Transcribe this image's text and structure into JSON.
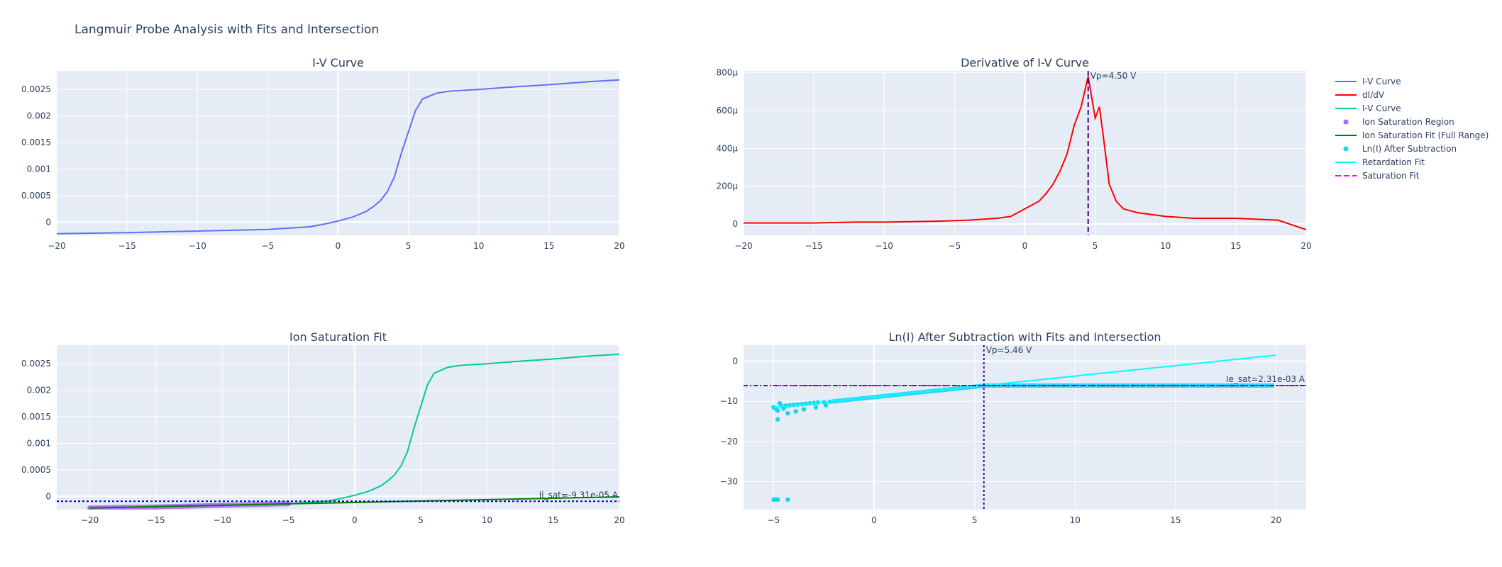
{
  "figure_title": "Langmuir Probe Analysis with Fits and Intersection",
  "colors": {
    "plot_bg": "#E5ECF6",
    "grid": "#FFFFFF",
    "text": "#2a3f5f",
    "iv_curve": "#636EFA",
    "didv": "#FF0000",
    "iv_curve_2": "#00CC96",
    "ion_region": "#AB63FA",
    "ion_fit": "#008000",
    "ln_points": "#19D3F3",
    "retard_fit": "#00FFFF",
    "sat_fit": "#FF00FF",
    "vp_line": "#4B0082",
    "isat_line": "#0000CD",
    "esat_line": "#8B008B"
  },
  "legend": [
    {
      "label": "I-V Curve",
      "kind": "line",
      "color": "#636EFA"
    },
    {
      "label": "dI/dV",
      "kind": "line",
      "color": "#FF0000"
    },
    {
      "label": "I-V Curve",
      "kind": "line",
      "color": "#00CC96"
    },
    {
      "label": "Ion Saturation Region",
      "kind": "marker",
      "color": "#AB63FA"
    },
    {
      "label": "Ion Saturation Fit (Full Range)",
      "kind": "line",
      "color": "#008000"
    },
    {
      "label": "Ln(I) After Subtraction",
      "kind": "marker",
      "color": "#19D3F3"
    },
    {
      "label": "Retardation Fit",
      "kind": "line",
      "color": "#00FFFF"
    },
    {
      "label": "Saturation Fit",
      "kind": "dash",
      "color": "#FF00FF"
    }
  ],
  "chart_data": [
    {
      "type": "line",
      "title": "I-V Curve",
      "xlim": [
        -20,
        20
      ],
      "ylim": [
        -0.00025,
        0.00285
      ],
      "xticks": [
        -20,
        -15,
        -10,
        -5,
        0,
        5,
        10,
        15,
        20
      ],
      "xtick_labels": [
        "−20",
        "−15",
        "−10",
        "−5",
        "0",
        "5",
        "10",
        "15",
        "20"
      ],
      "yticks": [
        0,
        0.0005,
        0.001,
        0.0015,
        0.002,
        0.0025
      ],
      "ytick_labels": [
        "0",
        "0.0005",
        "0.001",
        "0.0015",
        "0.002",
        "0.0025"
      ],
      "series": [
        {
          "name": "I-V Curve",
          "color": "#636EFA",
          "x": [
            -20,
            -15,
            -10,
            -5,
            -2,
            -1,
            0,
            1,
            2,
            2.5,
            3,
            3.5,
            4,
            4.5,
            5,
            5.5,
            6,
            7,
            8,
            10,
            12,
            15,
            18,
            20
          ],
          "y": [
            -0.00022,
            -0.0002,
            -0.00017,
            -0.00014,
            -9e-05,
            -4e-05,
            2e-05,
            9e-05,
            0.0002,
            0.00029,
            0.0004,
            0.00057,
            0.00085,
            0.0013,
            0.0017,
            0.0021,
            0.00232,
            0.00243,
            0.00247,
            0.0025,
            0.00254,
            0.00259,
            0.00265,
            0.00268
          ]
        }
      ]
    },
    {
      "type": "line",
      "title": "Derivative of I-V Curve",
      "xlim": [
        -20,
        20
      ],
      "ylim": [
        -6e-05,
        0.00081
      ],
      "xticks": [
        -20,
        -15,
        -10,
        -5,
        0,
        5,
        10,
        15,
        20
      ],
      "xtick_labels": [
        "−20",
        "−15",
        "−10",
        "−5",
        "0",
        "5",
        "10",
        "15",
        "20"
      ],
      "yticks": [
        0,
        0.0002,
        0.0004,
        0.0006,
        0.0008
      ],
      "ytick_labels": [
        "0",
        "200μ",
        "400μ",
        "600μ",
        "800μ"
      ],
      "series": [
        {
          "name": "dI/dV",
          "color": "#FF0000",
          "x": [
            -20,
            -15,
            -12,
            -10,
            -8,
            -6,
            -4,
            -2,
            -1,
            0,
            1,
            1.5,
            2,
            2.5,
            3,
            3.5,
            4,
            4.5,
            5,
            5.3,
            5.6,
            6,
            6.5,
            7,
            8,
            10,
            12,
            15,
            18,
            20
          ],
          "y": [
            5e-06,
            5e-06,
            1e-05,
            1e-05,
            1.2e-05,
            1.5e-05,
            2e-05,
            3e-05,
            4e-05,
            8e-05,
            0.00012,
            0.00016,
            0.00021,
            0.00028,
            0.00037,
            0.00052,
            0.00062,
            0.00078,
            0.00056,
            0.00062,
            0.00045,
            0.00021,
            0.00012,
            8e-05,
            6e-05,
            4e-05,
            3e-05,
            3e-05,
            2e-05,
            -3e-05
          ]
        }
      ],
      "annotations": [
        {
          "text": "Vp=4.50 V",
          "x": 4.5
        }
      ]
    },
    {
      "type": "line",
      "title": "Ion Saturation Fit",
      "xlim": [
        -22.5,
        20
      ],
      "ylim": [
        -0.00025,
        0.00285
      ],
      "xticks": [
        -20,
        -15,
        -10,
        -5,
        0,
        5,
        10,
        15,
        20
      ],
      "xtick_labels": [
        "−20",
        "−15",
        "−10",
        "−5",
        "0",
        "5",
        "10",
        "15",
        "20"
      ],
      "yticks": [
        0,
        0.0005,
        0.001,
        0.0015,
        0.002,
        0.0025
      ],
      "ytick_labels": [
        "0",
        "0.0005",
        "0.001",
        "0.0015",
        "0.002",
        "0.0025"
      ],
      "series": [
        {
          "name": "I-V Curve",
          "color": "#00CC96",
          "x": [
            -20,
            -15,
            -10,
            -5,
            -2,
            -1,
            0,
            1,
            2,
            2.5,
            3,
            3.5,
            4,
            4.5,
            5,
            5.5,
            6,
            7,
            8,
            10,
            12,
            15,
            18,
            20
          ],
          "y": [
            -0.00022,
            -0.0002,
            -0.00017,
            -0.00014,
            -9e-05,
            -4e-05,
            2e-05,
            9e-05,
            0.0002,
            0.00029,
            0.0004,
            0.00057,
            0.00085,
            0.0013,
            0.0017,
            0.0021,
            0.00232,
            0.00243,
            0.00247,
            0.0025,
            0.00254,
            0.00259,
            0.00265,
            0.00268
          ]
        },
        {
          "name": "Ion Saturation Region",
          "color": "#AB63FA",
          "x": [
            -20,
            -17.5,
            -15,
            -12.5,
            -10,
            -7.5,
            -5
          ],
          "y": [
            -0.00022,
            -0.00021,
            -0.0002,
            -0.000185,
            -0.00017,
            -0.000155,
            -0.00014
          ]
        },
        {
          "name": "Ion Saturation Fit (Full Range)",
          "color": "#008000",
          "x": [
            -20,
            20
          ],
          "y": [
            -0.00022,
            -1e-05
          ]
        }
      ],
      "annotations": [
        {
          "text": "Ii_sat=-9.31e-05 A",
          "y": -9.31e-05
        }
      ]
    },
    {
      "type": "scatter",
      "title": "Ln(I) After Subtraction with Fits and Intersection",
      "xlim": [
        -6.5,
        21.5
      ],
      "ylim": [
        -37,
        4
      ],
      "xticks": [
        -5,
        0,
        5,
        10,
        15,
        20
      ],
      "xtick_labels": [
        "−5",
        "0",
        "5",
        "10",
        "15",
        "20"
      ],
      "yticks": [
        0,
        -10,
        -20,
        -30
      ],
      "ytick_labels": [
        "0",
        "−10",
        "−20",
        "−30"
      ],
      "series": [
        {
          "name": "Ln(I) After Subtraction",
          "color": "#19D3F3",
          "x": [
            -5,
            -4.9,
            -4.8,
            -4.7,
            -4.5,
            -4.4,
            -4.2,
            -4,
            -3.8,
            -3.6,
            -3.4,
            -3.2,
            -3,
            -2.8,
            -2.5,
            -2.2,
            -2,
            -4.8,
            -4.6,
            -4.3,
            -3.9,
            -3.5,
            -2.9,
            -2.4,
            -5,
            -4.9,
            -4.8,
            -4.3
          ],
          "y": [
            -11.5,
            -11.8,
            -12.3,
            -10.5,
            -11.8,
            -11.1,
            -11.0,
            -10.9,
            -10.8,
            -10.7,
            -10.6,
            -10.5,
            -10.4,
            -10.3,
            -10.2,
            -10.1,
            -10.0,
            -14.5,
            -11.2,
            -13.0,
            -12.5,
            -12.0,
            -11.5,
            -11.0,
            -34.5,
            -34.5,
            -34.5,
            -34.5
          ]
        },
        {
          "name": "Retardation Fit",
          "color": "#00FFFF",
          "x": [
            -5,
            20
          ],
          "y": [
            -11.5,
            1.5
          ]
        },
        {
          "name": "Saturation Fit",
          "color": "#FF00FF",
          "x": [
            -5,
            21.5
          ],
          "y": [
            -6.07,
            -6.07
          ]
        }
      ],
      "annotations": [
        {
          "text": "Vp=5.46 V",
          "x": 5.46
        },
        {
          "text": "Ie_sat=2.31e-03 A",
          "y": -6.07
        }
      ]
    }
  ]
}
